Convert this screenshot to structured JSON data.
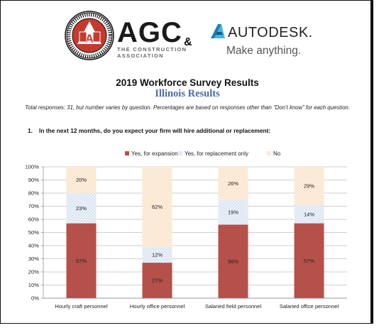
{
  "logos": {
    "agc_name": "AGC",
    "agc_line1": "THE CONSTRUCTION",
    "agc_line2": "ASSOCIATION",
    "agc_seal_text": "ASSOCIATED GENERAL CONTRACTORS OF AMERICA",
    "ampersand": "&",
    "autodesk_name": "AUTODESK.",
    "autodesk_tagline": "Make anything."
  },
  "header": {
    "title": "2019 Workforce Survey Results",
    "subtitle": "Illinois Results",
    "note": "Total responses: 31, but number varies by question. Percentages are based on responses other than “Don’t know” for each question."
  },
  "question": {
    "number": "1.",
    "text": "In the next 12 months, do you expect your firm will hire additional or replacement:"
  },
  "colors": {
    "expansion": "#b5504b",
    "replacement": "#c8d7ec",
    "no": "#f6cfa6",
    "accent": "#4a6ba6"
  },
  "chart_data": {
    "type": "bar",
    "stacked": true,
    "categories": [
      "Hourly craft personnel",
      "Hourly office personnel",
      "Salaried field personnel",
      "Salaried office personnel"
    ],
    "series": [
      {
        "name": "Yes, for expansion",
        "values": [
          57,
          27,
          56,
          57
        ],
        "labels": [
          "57%",
          "27%",
          "56%",
          "57%"
        ]
      },
      {
        "name": "Yes, for replacement only",
        "values": [
          23,
          12,
          19,
          14
        ],
        "labels": [
          "23%",
          "12%",
          "19%",
          "14%"
        ]
      },
      {
        "name": "No",
        "values": [
          20,
          62,
          26,
          29
        ],
        "labels": [
          "20%",
          "62%",
          "26%",
          "29%"
        ]
      }
    ],
    "yticks": [
      "0%",
      "10%",
      "20%",
      "30%",
      "40%",
      "50%",
      "60%",
      "70%",
      "80%",
      "90%",
      "100%"
    ],
    "ylim": [
      0,
      100
    ],
    "grid": true,
    "legend": "top-center"
  }
}
